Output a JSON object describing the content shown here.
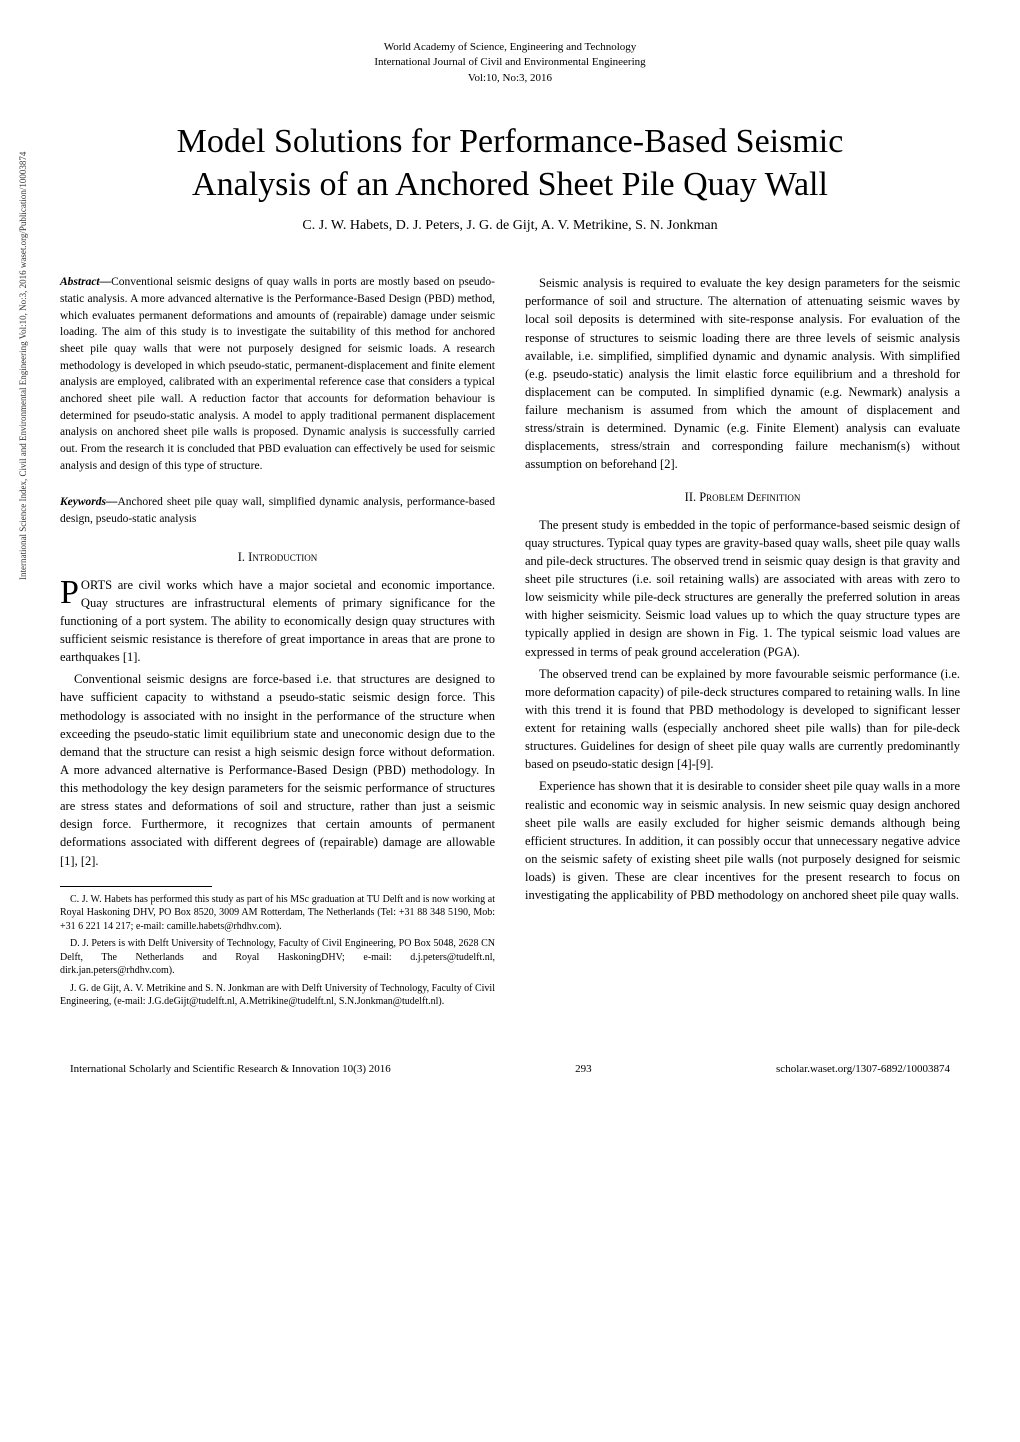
{
  "journal_header": {
    "line1": "World Academy of Science, Engineering and Technology",
    "line2": "International Journal of Civil and Environmental Engineering",
    "line3": "Vol:10, No:3, 2016"
  },
  "title_line1": "Model Solutions for Performance-Based Seismic",
  "title_line2": "Analysis of an Anchored Sheet Pile Quay Wall",
  "authors": "C. J. W. Habets, D. J. Peters, J. G. de Gijt, A. V. Metrikine, S. N. Jonkman",
  "abstract_label": "Abstract—",
  "abstract": "Conventional seismic designs of quay walls in ports are mostly based on pseudo-static analysis. A more advanced alternative is the Performance-Based Design (PBD) method, which evaluates permanent deformations and amounts of (repairable) damage under seismic loading. The aim of this study is to investigate the suitability of this method for anchored sheet pile quay walls that were not purposely designed for seismic loads. A research methodology is developed in which pseudo-static, permanent-displacement and finite element analysis are employed, calibrated with an experimental reference case that considers a typical anchored sheet pile wall. A reduction factor that accounts for deformation behaviour is determined for pseudo-static analysis. A model to apply traditional permanent displacement analysis on anchored sheet pile walls is proposed. Dynamic analysis is successfully carried out. From the research it is concluded that PBD evaluation can effectively be used for seismic analysis and design of this type of structure.",
  "keywords_label": "Keywords—",
  "keywords": "Anchored sheet pile quay wall, simplified dynamic analysis, performance-based design, pseudo-static analysis",
  "section1_heading": "I.  Introduction",
  "section2_heading": "II. Problem Definition",
  "intro_p1_firstword": "ORTS",
  "intro_p1": " are civil works which have a major societal and economic importance. Quay structures are infrastructural elements of primary significance for the functioning of a port system. The ability to economically design quay structures with sufficient seismic resistance is therefore of great importance in areas that are prone to earthquakes [1].",
  "intro_p2": "Conventional seismic designs are force-based i.e. that structures are designed to have sufficient capacity to withstand a pseudo-static seismic design force. This methodology is associated with no insight in the performance of the structure when exceeding the pseudo-static limit equilibrium state and uneconomic design due to the demand that the structure can resist a high seismic design force without deformation. A more advanced alternative is Performance-Based Design (PBD) methodology. In this methodology the key design parameters for the seismic performance of structures are stress states and deformations of soil and structure, rather than just a seismic design force. Furthermore, it recognizes that certain amounts of permanent deformations associated with different degrees of (repairable) damage are allowable [1], [2].",
  "right_p1": "Seismic analysis is required to evaluate the key design parameters for the seismic performance of soil and structure. The alternation of attenuating seismic waves by local soil deposits is determined with site-response analysis. For evaluation of the response of structures to seismic loading there are three levels of seismic analysis available, i.e. simplified, simplified dynamic and dynamic analysis. With simplified (e.g. pseudo-static) analysis the limit elastic force equilibrium and a threshold for displacement can be computed. In simplified dynamic (e.g. Newmark) analysis a failure mechanism is assumed from which the amount of displacement and stress/strain is determined. Dynamic (e.g. Finite Element) analysis can evaluate displacements, stress/strain and corresponding failure mechanism(s) without assumption on beforehand [2].",
  "right_p2": "The present study is embedded in the topic of performance-based seismic design of quay structures. Typical quay types are gravity-based quay walls, sheet pile quay walls and pile-deck structures. The observed trend in seismic quay design is that gravity and sheet pile structures (i.e. soil retaining walls) are associated with areas with zero to low seismicity while pile-deck structures are generally the preferred solution in areas with higher seismicity. Seismic load values up to which the quay structure types are typically applied in design are shown in Fig. 1. The typical seismic load values are expressed in terms of peak ground acceleration (PGA).",
  "right_p3": "The observed trend can be explained by more favourable seismic performance (i.e. more deformation capacity) of pile-deck structures compared to retaining walls. In line with this trend it is found that PBD methodology is developed to significant lesser extent for retaining walls (especially anchored sheet pile walls) than for pile-deck structures. Guidelines for design of sheet pile quay walls are currently predominantly based on pseudo-static design [4]-[9].",
  "right_p4": "Experience has shown that it is desirable to consider sheet pile quay walls in a more realistic and economic way in seismic analysis. In new seismic quay design anchored sheet pile walls are easily excluded for higher seismic demands although being efficient structures. In addition, it can possibly occur that unnecessary negative advice on the seismic safety of existing sheet pile walls (not purposely designed for seismic loads) is given. These are clear incentives for the present research to focus on investigating the applicability of PBD methodology on anchored sheet pile quay walls.",
  "footnote1": "C. J. W. Habets has performed this study as part of his MSc graduation at TU Delft and is now working at Royal Haskoning DHV, PO Box 8520, 3009 AM Rotterdam, The Netherlands (Tel: +31 88 348 5190, Mob: +31 6 221 14 217; e-mail: camille.habets@rhdhv.com).",
  "footnote2": "D. J. Peters is with Delft University of Technology, Faculty of Civil Engineering, PO Box 5048, 2628 CN Delft, The Netherlands and Royal HaskoningDHV; e-mail: d.j.peters@tudelft.nl, dirk.jan.peters@rhdhv.com).",
  "footnote3": "J. G. de Gijt, A. V. Metrikine and S. N. Jonkman are with Delft University of Technology, Faculty of Civil Engineering, (e-mail: J.G.deGijt@tudelft.nl, A.Metrikine@tudelft.nl, S.N.Jonkman@tudelft.nl).",
  "side_label": "International Science Index, Civil and Environmental Engineering Vol:10, No:3, 2016 waset.org/Publication/10003874",
  "footer_left": "International Scholarly and Scientific Research & Innovation 10(3) 2016",
  "footer_center": "293",
  "footer_right": "scholar.waset.org/1307-6892/10003874"
}
